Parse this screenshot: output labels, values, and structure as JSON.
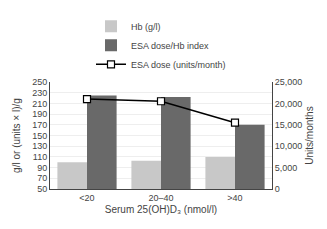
{
  "chart_data": {
    "type": "bar",
    "xlabel": "Serum 25(OH)D₃ (nmol/l)",
    "ylabel": "g/l or (units × l)/g",
    "y2label": "Units/months",
    "categories": [
      "<20",
      "20–40",
      ">40"
    ],
    "series": [
      {
        "name": "Hb (g/l)",
        "color": "#c8c8c8",
        "values": [
          100,
          103,
          110
        ]
      },
      {
        "name": "ESA dose/Hb index",
        "color": "#696969",
        "values": [
          225,
          222,
          170
        ]
      },
      {
        "name": "ESA dose (units/month)",
        "type": "line",
        "axis": "y2",
        "color": "#000000",
        "marker": "square",
        "values": [
          21000,
          20500,
          15500
        ]
      }
    ],
    "ylim": [
      50,
      250
    ],
    "yticks": [
      50,
      70,
      90,
      110,
      130,
      150,
      170,
      190,
      210,
      230,
      250
    ],
    "y2lim": [
      0,
      25000
    ],
    "y2ticks": [
      0,
      {
        "value": 5000,
        "label": "5,000"
      },
      {
        "value": 10000,
        "label": "10,000"
      },
      {
        "value": 15000,
        "label": "15,000"
      },
      {
        "value": 20000,
        "label": "20,000"
      },
      {
        "value": 25000,
        "label": "25,000"
      }
    ],
    "grid": true,
    "legend": "top"
  }
}
